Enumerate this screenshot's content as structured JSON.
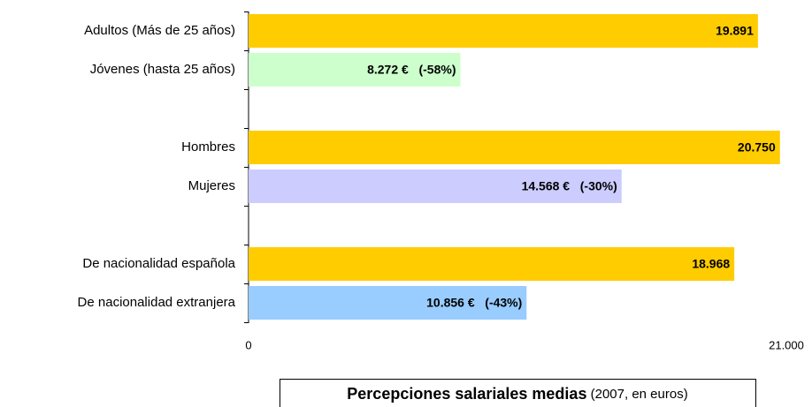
{
  "chart_data": {
    "type": "bar",
    "orientation": "horizontal",
    "title": "Percepciones salariales medias",
    "subtitle": "(2007, en euros)",
    "categories": [
      "Adultos (Más de 25 años)",
      "Jóvenes (hasta 25 años)",
      "Hombres",
      "Mujeres",
      "De nacionalidad española",
      "De nacionalidad extranjera"
    ],
    "values": [
      19891,
      8272,
      20750,
      14568,
      18968,
      10856
    ],
    "value_labels": [
      "19.891",
      "8.272 €   (-58%)",
      "20.750",
      "14.568 €   (-30%)",
      "18.968",
      "10.856 €   (-43%)"
    ],
    "colors": [
      "#FFCC00",
      "#CCFFCC",
      "#FFCC00",
      "#CCCCFF",
      "#FFCC00",
      "#99CCFF"
    ],
    "xlim": [
      0,
      21000
    ],
    "xticks": [
      0,
      {
        "value": 21000,
        "label": "21.000"
      }
    ],
    "grid": false
  }
}
